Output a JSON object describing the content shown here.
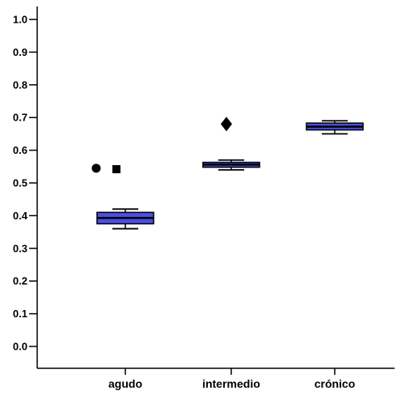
{
  "chart_data": {
    "type": "boxplot",
    "title": "",
    "xlabel": "",
    "ylabel": "",
    "ylim": [
      0,
      1.0
    ],
    "yticks": [
      "0.0",
      "0.1",
      "0.2",
      "0.3",
      "0.4",
      "0.5",
      "0.6",
      "0.7",
      "0.8",
      "0.9",
      "1.0"
    ],
    "grid": false,
    "categories": [
      "agudo",
      "intermedio",
      "crónico"
    ],
    "boxes": [
      {
        "category": "agudo",
        "whisker_low": 0.36,
        "q1": 0.375,
        "median": 0.393,
        "q3": 0.41,
        "whisker_high": 0.42,
        "outliers": [
          {
            "value": 0.545,
            "marker": "circle"
          },
          {
            "value": 0.542,
            "marker": "square"
          }
        ]
      },
      {
        "category": "intermedio",
        "whisker_low": 0.54,
        "q1": 0.548,
        "median": 0.556,
        "q3": 0.563,
        "whisker_high": 0.57,
        "outliers": [
          {
            "value": 0.68,
            "marker": "diamond"
          }
        ]
      },
      {
        "category": "crónico",
        "whisker_low": 0.65,
        "q1": 0.662,
        "median": 0.672,
        "q3": 0.683,
        "whisker_high": 0.69,
        "outliers": []
      }
    ],
    "colors": {
      "box_fill": "#4a4ee0",
      "box_stroke": "#000000",
      "axis": "#000000",
      "marker": "#000000"
    }
  }
}
